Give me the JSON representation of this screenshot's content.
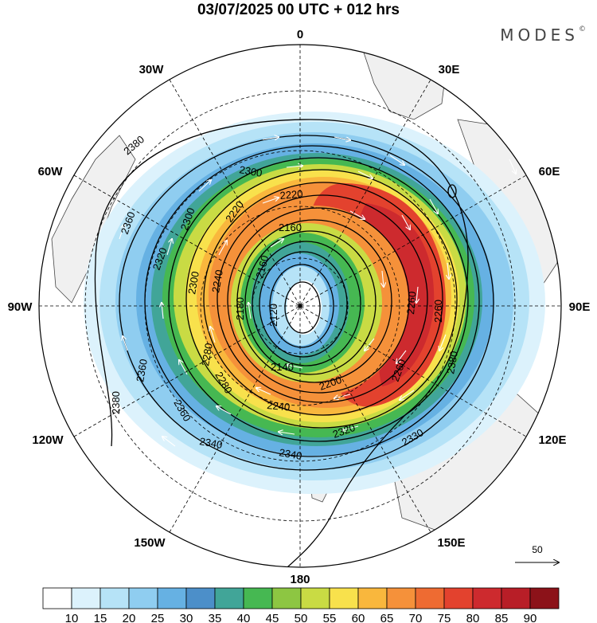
{
  "title": "03/07/2025  00 UTC  + 012 hrs",
  "brand": "MODES",
  "brand_mark": "©",
  "meridian_labels": {
    "m0": "0",
    "m30e": "30E",
    "m60e": "60E",
    "m90e": "90E",
    "m120e": "120E",
    "m150e": "150E",
    "m180": "180",
    "m150w": "150W",
    "m120w": "120W",
    "m90w": "90W",
    "m60w": "60W",
    "m30w": "30W"
  },
  "contour_labels": {
    "c2380a": "2380",
    "c2380b": "2380",
    "c2380c": "2380",
    "c2360a": "2360",
    "c2360b": "2360",
    "c2360c": "2360",
    "c2340a": "2340",
    "c2340b": "2340",
    "c2330": "2330",
    "c2320a": "2320",
    "c2320b": "2320",
    "c2300a": "2300",
    "c2300b": "2300",
    "c2300c": "2300",
    "c2280a": "2280",
    "c2280b": "2280",
    "c2260a": "2260",
    "c2260b": "2260",
    "c2260c": "2260",
    "c2240a": "2240",
    "c2240b": "2240",
    "c2220a": "2220",
    "c2220b": "2220",
    "c2200": "2200",
    "c2180": "2180",
    "c2160a": "2160",
    "c2160b": "2160",
    "c2140": "2140",
    "c2120": "2120"
  },
  "reference_vector": "50",
  "colorbar": {
    "labels": [
      "10",
      "15",
      "20",
      "25",
      "30",
      "35",
      "40",
      "45",
      "50",
      "55",
      "60",
      "65",
      "70",
      "75",
      "80",
      "85",
      "90"
    ],
    "colors": [
      "#ffffff",
      "#dcf2fc",
      "#b6e3f7",
      "#8fcdf0",
      "#66b1e3",
      "#4c8fc9",
      "#41a598",
      "#46b852",
      "#8dc642",
      "#c9db44",
      "#f8e14c",
      "#f9b73d",
      "#f5913a",
      "#ee6b32",
      "#e3422e",
      "#cd2a2e",
      "#b81e27",
      "#8c1219"
    ]
  }
}
